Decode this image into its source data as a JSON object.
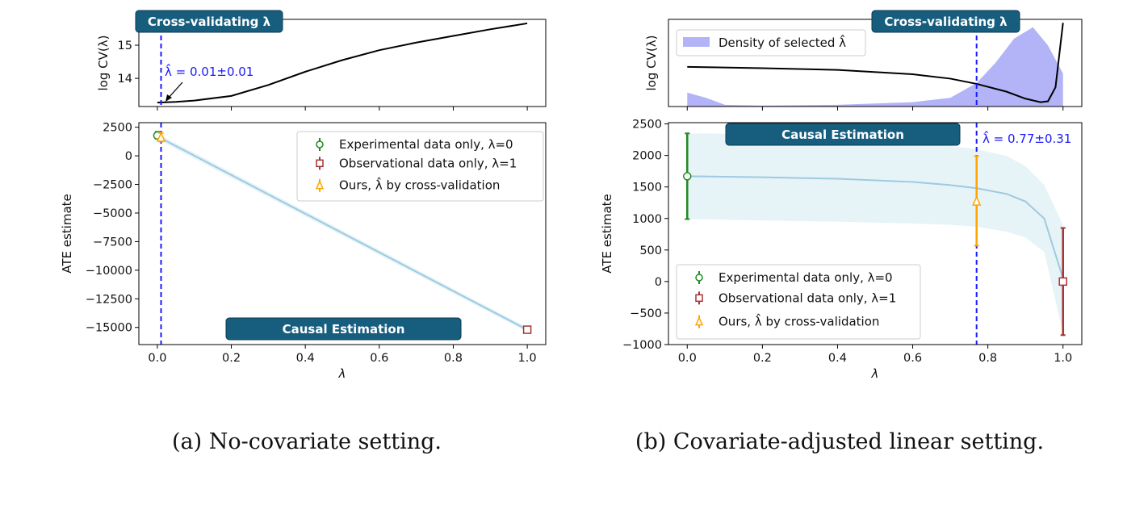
{
  "captions": [
    "(a) No-covariate setting.",
    "(b) Covariate-adjusted linear setting."
  ],
  "colors": {
    "banner": "#175d7e",
    "experimental": "#1f8a1f",
    "observational": "#a83232",
    "ours": "#ffa500",
    "selected_line": "#1a1aff",
    "curve": "#9ecae1",
    "band": "#e6f3f7",
    "density": "#b3b3f7"
  },
  "chart_data": [
    {
      "id": "a-top",
      "type": "line",
      "banner": "Cross-validating λ",
      "ylabel": "log CV(λ)",
      "xlim": [
        -0.05,
        1.05
      ],
      "ylim": [
        13.15,
        15.78
      ],
      "xticks": [
        0,
        0.2,
        0.4,
        0.6,
        0.8,
        1.0
      ],
      "yticks": [
        14,
        15
      ],
      "yticklabels": [
        "14",
        "15"
      ],
      "x": [
        0,
        0.05,
        0.1,
        0.2,
        0.3,
        0.4,
        0.5,
        0.6,
        0.7,
        0.8,
        0.9,
        1.0
      ],
      "cv": [
        13.27,
        13.29,
        13.33,
        13.47,
        13.8,
        14.2,
        14.55,
        14.85,
        15.08,
        15.28,
        15.48,
        15.66
      ],
      "lambda_hat": 0.01,
      "annotation": "λ̂ = 0.01±0.01"
    },
    {
      "id": "a-bottom",
      "type": "line",
      "banner": "Causal Estimation",
      "xlabel": "λ",
      "ylabel": "ATE estimate",
      "xlim": [
        -0.05,
        1.05
      ],
      "ylim": [
        -16500,
        2900
      ],
      "xticks": [
        0,
        0.2,
        0.4,
        0.6,
        0.8,
        1.0
      ],
      "xticklabels": [
        "0.0",
        "0.2",
        "0.4",
        "0.6",
        "0.8",
        "1.0"
      ],
      "yticks": [
        2500,
        0,
        -2500,
        -5000,
        -7500,
        -10000,
        -12500,
        -15000
      ],
      "yticklabels": [
        "2500",
        "0",
        "−2500",
        "−5000",
        "−7500",
        "−10000",
        "−12500",
        "−15000"
      ],
      "curve": {
        "x": [
          0,
          1
        ],
        "y": [
          1700,
          -15200
        ],
        "upper": [
          1950,
          -15000
        ],
        "lower": [
          1450,
          -15400
        ]
      },
      "points": [
        {
          "label": "Experimental data only, λ=0",
          "x": 0,
          "y": 1780,
          "lo": 1500,
          "hi": 2100,
          "marker": "circle"
        },
        {
          "label": "Observational data only, λ=1",
          "x": 1,
          "y": -15200,
          "lo": -15400,
          "hi": -15000,
          "marker": "square"
        },
        {
          "label": "Ours, λ̂ by cross-validation",
          "x": 0.01,
          "y": 1600,
          "lo": 1250,
          "hi": 2000,
          "marker": "triangle"
        }
      ],
      "lambda_hat": 0.01,
      "legend": "top-right"
    },
    {
      "id": "b-top",
      "type": "area",
      "banner": "Cross-validating λ",
      "ylabel": "log CV(λ)",
      "xlim": [
        -0.05,
        1.05
      ],
      "ylim": [
        0,
        1
      ],
      "xticks": [
        0,
        0.2,
        0.4,
        0.6,
        0.8,
        1.0
      ],
      "density_label": "Density of selected λ̂",
      "x": [
        0,
        0.05,
        0.1,
        0.2,
        0.4,
        0.6,
        0.7,
        0.77,
        0.82,
        0.87,
        0.92,
        0.96,
        1.0
      ],
      "density": [
        0.16,
        0.1,
        0.02,
        0.01,
        0.02,
        0.05,
        0.1,
        0.27,
        0.5,
        0.78,
        0.91,
        0.7,
        0.38
      ],
      "cv_x": [
        0,
        0.2,
        0.4,
        0.6,
        0.7,
        0.77,
        0.85,
        0.9,
        0.94,
        0.96,
        0.98,
        1.0
      ],
      "cv": [
        0.455,
        0.44,
        0.42,
        0.37,
        0.32,
        0.26,
        0.17,
        0.09,
        0.05,
        0.06,
        0.22,
        0.96
      ],
      "lambda_hat": 0.77,
      "legend": "top-left"
    },
    {
      "id": "b-bottom",
      "type": "line",
      "banner": "Causal Estimation",
      "xlabel": "λ",
      "ylabel": "ATE estimate",
      "xlim": [
        -0.05,
        1.05
      ],
      "ylim": [
        -1000,
        2520
      ],
      "xticks": [
        0,
        0.2,
        0.4,
        0.6,
        0.8,
        1.0
      ],
      "xticklabels": [
        "0.0",
        "0.2",
        "0.4",
        "0.6",
        "0.8",
        "1.0"
      ],
      "yticks": [
        2500,
        2000,
        1500,
        1000,
        500,
        0,
        -500,
        -1000
      ],
      "yticklabels": [
        "2500",
        "2000",
        "1500",
        "1000",
        "500",
        "0",
        "−500",
        "−1000"
      ],
      "curve": {
        "x": [
          0,
          0.2,
          0.4,
          0.6,
          0.7,
          0.77,
          0.85,
          0.9,
          0.95,
          1.0
        ],
        "y": [
          1670,
          1655,
          1630,
          1580,
          1530,
          1480,
          1390,
          1270,
          1000,
          50
        ],
        "upper": [
          2350,
          2340,
          2290,
          2230,
          2150,
          2100,
          1990,
          1830,
          1530,
          900
        ],
        "lower": [
          990,
          970,
          950,
          920,
          900,
          870,
          790,
          700,
          470,
          -820
        ]
      },
      "points": [
        {
          "label": "Experimental data only, λ=0",
          "x": 0,
          "y": 1670,
          "lo": 990,
          "hi": 2350,
          "marker": "circle"
        },
        {
          "label": "Observational data only, λ=1",
          "x": 1,
          "y": 0,
          "lo": -850,
          "hi": 850,
          "marker": "square"
        },
        {
          "label": "Ours, λ̂ by cross-validation",
          "x": 0.77,
          "y": 1270,
          "lo": 570,
          "hi": 1990,
          "marker": "triangle"
        }
      ],
      "lambda_hat": 0.77,
      "annotation": "λ̂ = 0.77±0.31",
      "legend": "lower-left"
    }
  ]
}
